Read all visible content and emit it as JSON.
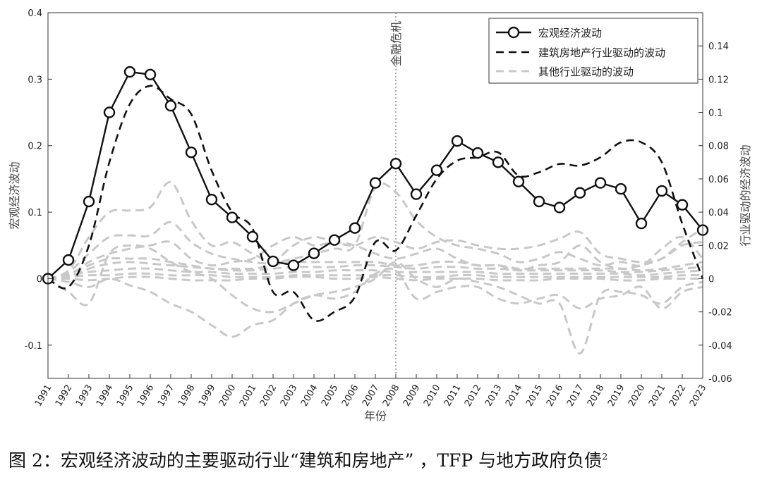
{
  "chart_data": {
    "type": "line",
    "x": [
      1991,
      1992,
      1993,
      1994,
      1995,
      1996,
      1997,
      1998,
      1999,
      2000,
      2001,
      2002,
      2003,
      2004,
      2005,
      2006,
      2007,
      2008,
      2009,
      2010,
      2011,
      2012,
      2013,
      2014,
      2015,
      2016,
      2017,
      2018,
      2019,
      2020,
      2021,
      2022,
      2023
    ],
    "x_ticks": [
      "1991",
      "1992",
      "1993",
      "1994",
      "1995",
      "1996",
      "1997",
      "1998",
      "1999",
      "2000",
      "2001",
      "2002",
      "2003",
      "2004",
      "2005",
      "2006",
      "2007",
      "2008",
      "2009",
      "2010",
      "2011",
      "2012",
      "2013",
      "2014",
      "2015",
      "2016",
      "2017",
      "2018",
      "2019",
      "2020",
      "2021",
      "2022",
      "2023"
    ],
    "xlabel": "年份",
    "ylabel_left": "宏观经济波动",
    "ylabel_right": "行业驱动的经济波动",
    "ylim_left": [
      -0.15,
      0.4
    ],
    "ylim_right": [
      -0.06,
      0.16
    ],
    "yticks_left": [
      "0.4",
      "0.3",
      "0.2",
      "0.1",
      "0",
      "-0.1"
    ],
    "yticks_left_values": [
      0.4,
      0.3,
      0.2,
      0.1,
      0,
      -0.1
    ],
    "yticks_right": [
      "0.14",
      "0.12",
      "0.1",
      "0.08",
      "0.06",
      "0.04",
      "0.02",
      "0",
      "-0.02",
      "-0.04",
      "-0.06"
    ],
    "yticks_right_values": [
      0.14,
      0.12,
      0.1,
      0.08,
      0.06,
      0.04,
      0.02,
      0,
      -0.02,
      -0.04,
      -0.06
    ],
    "annotation": {
      "x": 2008,
      "text": "金融危机"
    },
    "legend": {
      "placement": "top-right"
    },
    "series": [
      {
        "name": "宏观经济波动",
        "axis": "left",
        "style": "solid-circle",
        "color": "#111111",
        "values": [
          0.0,
          0.028,
          0.116,
          0.25,
          0.311,
          0.307,
          0.26,
          0.19,
          0.119,
          0.092,
          0.063,
          0.026,
          0.02,
          0.038,
          0.058,
          0.076,
          0.144,
          0.173,
          0.127,
          0.163,
          0.207,
          0.189,
          0.175,
          0.146,
          0.116,
          0.107,
          0.129,
          0.144,
          0.135,
          0.083,
          0.132,
          0.111,
          0.073
        ]
      },
      {
        "name": "建筑房地产行业驱动的波动",
        "axis": "right",
        "style": "dash-black",
        "color": "#111111",
        "values": [
          0.0,
          -0.005,
          0.02,
          0.07,
          0.105,
          0.116,
          0.108,
          0.099,
          0.065,
          0.04,
          0.03,
          -0.008,
          -0.008,
          -0.025,
          -0.02,
          -0.011,
          0.022,
          0.017,
          0.038,
          0.06,
          0.071,
          0.073,
          0.076,
          0.062,
          0.064,
          0.069,
          0.068,
          0.073,
          0.082,
          0.082,
          0.07,
          0.033,
          0.0
        ]
      },
      {
        "name": "其他行业驱动的波动",
        "axis": "right",
        "style": "dash-gray",
        "color": "#c8c8c8",
        "lines": [
          [
            0.0,
            0.005,
            0.025,
            0.04,
            0.041,
            0.043,
            0.058,
            0.035,
            0.02,
            0.022,
            0.015,
            0.01,
            0.012,
            0.015,
            0.018,
            0.02,
            0.055,
            0.052,
            0.035,
            0.025,
            0.02,
            0.018,
            0.015,
            0.01,
            0.012,
            0.016,
            0.012,
            0.008,
            0.01,
            0.008,
            0.018,
            0.025,
            0.012
          ],
          [
            0.0,
            0.004,
            0.015,
            0.025,
            0.026,
            0.026,
            0.034,
            0.022,
            0.015,
            0.012,
            0.01,
            0.01,
            0.02,
            0.025,
            0.022,
            0.02,
            0.025,
            0.022,
            0.018,
            0.022,
            0.023,
            0.02,
            0.018,
            0.018,
            0.02,
            0.024,
            0.028,
            0.015,
            0.012,
            0.01,
            0.012,
            0.02,
            0.022
          ],
          [
            0.0,
            -0.008,
            -0.015,
            0.015,
            0.02,
            0.018,
            0.01,
            0.004,
            0.0,
            -0.01,
            -0.018,
            -0.02,
            -0.015,
            -0.01,
            -0.008,
            -0.005,
            0.0,
            0.01,
            0.0,
            -0.005,
            0.0,
            -0.002,
            -0.005,
            -0.01,
            -0.015,
            -0.015,
            -0.045,
            -0.01,
            -0.008,
            -0.01,
            -0.015,
            -0.005,
            -0.002
          ],
          [
            0.0,
            -0.002,
            -0.005,
            0.0,
            -0.004,
            -0.008,
            -0.015,
            -0.02,
            -0.028,
            -0.035,
            -0.028,
            -0.025,
            -0.015,
            -0.01,
            -0.012,
            -0.008,
            0.003,
            0.005,
            -0.012,
            -0.008,
            -0.005,
            -0.005,
            -0.012,
            -0.015,
            -0.012,
            -0.01,
            -0.018,
            -0.012,
            -0.01,
            -0.005,
            -0.018,
            -0.008,
            -0.005
          ],
          [
            0.0,
            0.002,
            0.01,
            0.015,
            0.018,
            0.02,
            0.022,
            0.012,
            0.008,
            0.01,
            0.012,
            0.02,
            0.025,
            0.02,
            0.022,
            0.02,
            0.015,
            0.012,
            0.015,
            0.018,
            0.012,
            0.008,
            0.008,
            0.005,
            0.008,
            0.01,
            0.02,
            0.01,
            0.006,
            0.008,
            0.012,
            0.022,
            0.03
          ],
          [
            0.0,
            0.003,
            0.008,
            0.012,
            0.012,
            0.012,
            0.01,
            0.008,
            0.006,
            0.006,
            0.006,
            0.008,
            0.01,
            0.01,
            0.01,
            0.01,
            0.01,
            0.008,
            0.008,
            0.01,
            0.01,
            0.008,
            0.008,
            0.006,
            0.006,
            0.006,
            0.006,
            0.006,
            0.006,
            0.005,
            0.006,
            0.008,
            0.01
          ],
          [
            0.0,
            0.002,
            0.004,
            0.005,
            0.006,
            0.006,
            0.005,
            0.004,
            0.004,
            0.003,
            0.003,
            0.003,
            0.004,
            0.004,
            0.005,
            0.005,
            0.005,
            0.004,
            0.004,
            0.004,
            0.004,
            0.004,
            0.003,
            0.003,
            0.003,
            0.003,
            0.003,
            0.003,
            0.003,
            0.002,
            0.003,
            0.004,
            0.005
          ],
          [
            0.0,
            0.001,
            0.002,
            0.002,
            0.003,
            0.003,
            0.002,
            0.002,
            0.002,
            0.001,
            0.001,
            0.001,
            0.002,
            0.002,
            0.002,
            0.002,
            0.002,
            0.002,
            0.001,
            0.001,
            0.002,
            0.002,
            0.001,
            0.001,
            0.001,
            0.001,
            0.001,
            0.001,
            0.001,
            0.001,
            0.001,
            0.002,
            0.002
          ],
          [
            0.0,
            0.0,
            -0.001,
            0.0,
            0.001,
            0.001,
            0.0,
            -0.001,
            -0.001,
            -0.001,
            0.0,
            0.0,
            0.001,
            0.001,
            0.0,
            0.0,
            0.001,
            0.0,
            -0.001,
            0.0,
            0.0,
            0.0,
            -0.001,
            -0.001,
            -0.001,
            0.0,
            0.0,
            0.0,
            -0.001,
            -0.001,
            0.0,
            0.0,
            0.0
          ],
          [
            0.0,
            0.001,
            0.006,
            0.009,
            0.01,
            0.009,
            0.008,
            0.007,
            0.006,
            0.005,
            0.005,
            0.006,
            0.007,
            0.007,
            0.007,
            0.008,
            0.008,
            0.007,
            0.006,
            0.007,
            0.007,
            0.006,
            0.006,
            0.005,
            0.005,
            0.005,
            0.005,
            0.005,
            0.004,
            0.004,
            0.005,
            0.006,
            0.007
          ]
        ]
      }
    ]
  },
  "caption": {
    "text": "图 2：宏观经济波动的主要驱动行业“建筑和房地产” ，TFP 与地方政府负债",
    "footnote_mark": "2"
  }
}
